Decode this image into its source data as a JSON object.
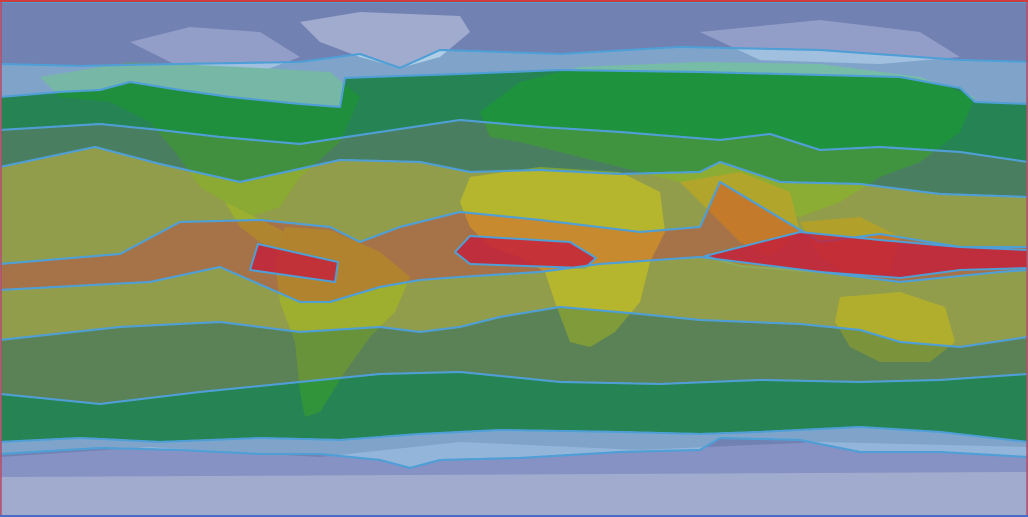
{
  "map": {
    "type": "world-climate-zone-map",
    "projection": "equirectangular",
    "land_colors": {
      "ice": "#c7cbd3",
      "tundra": "#8590b8",
      "boreal": "#3fa35a",
      "temperate": "#7fbf4a",
      "desert": "#f0e84a",
      "tropical": "#d68a2a",
      "ocean": "#5a6e9a"
    },
    "bands": [
      {
        "id": "north-polar",
        "color": "#7f90c8",
        "opacity": 0.55
      },
      {
        "id": "north-subpolar",
        "color": "#9ad0f2",
        "opacity": 0.55
      },
      {
        "id": "north-boreal",
        "color": "#0f8a3a",
        "opacity": 0.72
      },
      {
        "id": "north-temperate",
        "color": "#3a8a3a",
        "opacity": 0.6
      },
      {
        "id": "north-subtropical",
        "color": "#a6b02a",
        "opacity": 0.7
      },
      {
        "id": "north-desert-belt",
        "color": "#d2b028",
        "opacity": 0.55
      },
      {
        "id": "equatorial",
        "color": "#c2742a",
        "opacity": 0.72
      },
      {
        "id": "equatorial-core",
        "color": "#c41f3a",
        "opacity": 0.82
      },
      {
        "id": "south-subtropical",
        "color": "#a6b02a",
        "opacity": 0.7
      },
      {
        "id": "south-temperate",
        "color": "#5a8a3a",
        "opacity": 0.7
      },
      {
        "id": "south-boreal",
        "color": "#0f8a3a",
        "opacity": 0.72
      },
      {
        "id": "south-subpolar",
        "color": "#9ad0f2",
        "opacity": 0.55
      },
      {
        "id": "south-polar",
        "color": "#7f90c8",
        "opacity": 0.55
      }
    ],
    "border_color": "#4f9fd6"
  }
}
